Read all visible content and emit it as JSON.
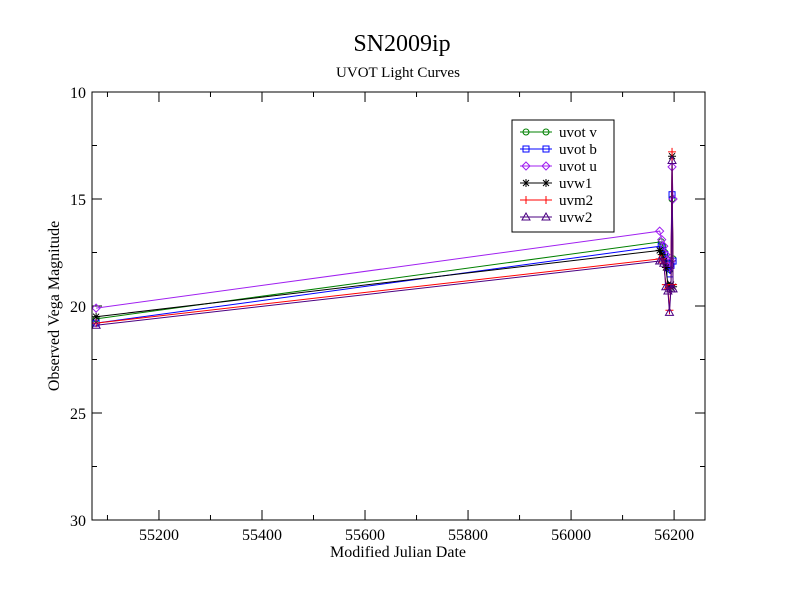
{
  "chart_data": {
    "type": "line",
    "title": "SN2009ip",
    "subtitle": "UVOT Light Curves",
    "xlabel": "Modified Julian Date",
    "ylabel": "Observed Vega Magnitude",
    "xlim": [
      55070,
      56260
    ],
    "ylim": [
      30,
      10
    ],
    "y_inverted": true,
    "x_ticks": [
      55200,
      55400,
      55600,
      55800,
      56000,
      56200
    ],
    "y_ticks": [
      10,
      15,
      20,
      25,
      30
    ],
    "grid": false,
    "legend_position": "top-right",
    "series": [
      {
        "name": "uvot v",
        "color": "#008000",
        "marker": "circle",
        "x": [
          55078,
          56175,
          56178,
          56182,
          56186,
          56189,
          56192,
          56194,
          56196,
          56198
        ],
        "y": [
          20.6,
          17.0,
          17.2,
          17.5,
          17.8,
          18.0,
          18.3,
          18.0,
          15.0,
          17.8
        ]
      },
      {
        "name": "uvot b",
        "color": "#0000ff",
        "marker": "square",
        "x": [
          55078,
          56175,
          56178,
          56182,
          56186,
          56189,
          56192,
          56194,
          56196,
          56198
        ],
        "y": [
          20.8,
          17.2,
          17.4,
          17.6,
          18.0,
          18.2,
          18.5,
          18.1,
          14.8,
          17.9
        ]
      },
      {
        "name": "uvot u",
        "color": "#a020f0",
        "marker": "diamond",
        "x": [
          55078,
          56172,
          56176,
          56180,
          56184,
          56188,
          56191,
          56194,
          56196,
          56198
        ],
        "y": [
          20.1,
          16.5,
          16.9,
          17.2,
          17.6,
          17.9,
          18.2,
          17.9,
          13.5,
          15.0
        ]
      },
      {
        "name": "uvw1",
        "color": "#000000",
        "marker": "star",
        "x": [
          55078,
          56172,
          56176,
          56180,
          56184,
          56188,
          56191,
          56194,
          56196,
          56198
        ],
        "y": [
          20.5,
          17.4,
          17.6,
          17.9,
          18.2,
          19.0,
          19.2,
          19.0,
          13.0,
          19.1
        ]
      },
      {
        "name": "uvm2",
        "color": "#ff0000",
        "marker": "plus",
        "x": [
          55078,
          56172,
          56176,
          56180,
          56184,
          56188,
          56191,
          56194,
          56196,
          56198
        ],
        "y": [
          20.8,
          17.8,
          17.8,
          18.0,
          19.0,
          19.2,
          20.2,
          19.0,
          12.8,
          19.0
        ]
      },
      {
        "name": "uvw2",
        "color": "#4b0082",
        "marker": "triangle",
        "x": [
          55078,
          56172,
          56176,
          56180,
          56184,
          56188,
          56191,
          56194,
          56196,
          56198
        ],
        "y": [
          20.9,
          17.9,
          17.9,
          18.0,
          19.1,
          19.3,
          20.3,
          19.2,
          13.2,
          19.2
        ]
      }
    ]
  }
}
